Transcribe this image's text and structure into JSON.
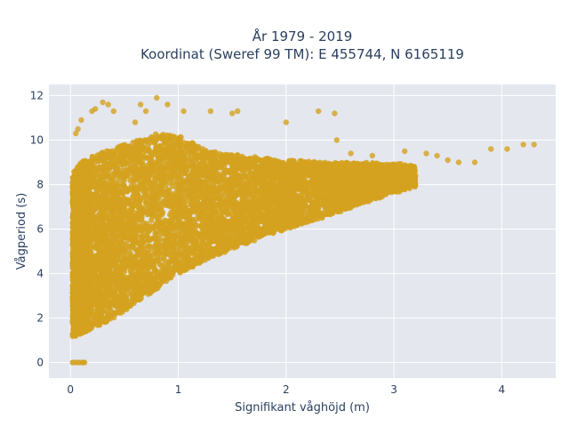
{
  "chart_data": {
    "type": "scatter",
    "title_line1": "År 1979 - 2019",
    "title_line2": "Koordinat (Sweref 99 TM): E 455744, N 6165119",
    "xlabel": "Signifikant våghöjd (m)",
    "ylabel": "Vågperiod (s)",
    "xlim": [
      -0.2,
      4.5
    ],
    "ylim": [
      -0.7,
      12.5
    ],
    "x_ticks": [
      0,
      1,
      2,
      3,
      4
    ],
    "y_ticks": [
      0,
      2,
      4,
      6,
      8,
      10,
      12
    ],
    "x_tick_labels": [
      "0",
      "1",
      "2",
      "3",
      "4"
    ],
    "y_tick_labels": [
      "0",
      "2",
      "4",
      "6",
      "8",
      "10",
      "12"
    ],
    "grid": true,
    "point_color": "#d4a21f",
    "plot_background": "#e5e7ef",
    "dense_region_envelope": {
      "x": [
        0.02,
        0.05,
        0.1,
        0.2,
        0.4,
        0.6,
        0.8,
        1.0,
        1.3,
        1.6,
        2.0,
        2.4,
        2.8,
        3.2
      ],
      "y_min": [
        1.1,
        1.2,
        1.3,
        1.5,
        2.0,
        2.6,
        3.3,
        4.0,
        4.7,
        5.3,
        6.0,
        6.6,
        7.3,
        7.9
      ],
      "y_max": [
        8.5,
        8.7,
        9.0,
        9.3,
        9.6,
        10.0,
        10.3,
        10.2,
        9.5,
        9.3,
        9.1,
        9.0,
        9.0,
        8.9
      ]
    },
    "zero_period_points": [
      [
        0.02,
        0.0
      ],
      [
        0.05,
        0.0
      ],
      [
        0.08,
        0.0
      ],
      [
        0.11,
        0.0
      ],
      [
        0.13,
        0.0
      ]
    ],
    "outlier_points": [
      [
        0.05,
        10.3
      ],
      [
        0.07,
        10.5
      ],
      [
        0.1,
        10.9
      ],
      [
        0.2,
        11.3
      ],
      [
        0.23,
        11.4
      ],
      [
        0.3,
        11.7
      ],
      [
        0.35,
        11.6
      ],
      [
        0.4,
        11.3
      ],
      [
        0.6,
        10.8
      ],
      [
        0.65,
        11.6
      ],
      [
        0.7,
        11.3
      ],
      [
        0.8,
        11.9
      ],
      [
        0.9,
        11.6
      ],
      [
        1.05,
        11.3
      ],
      [
        1.3,
        11.3
      ],
      [
        1.5,
        11.2
      ],
      [
        1.55,
        11.3
      ],
      [
        2.0,
        10.8
      ],
      [
        2.3,
        11.3
      ],
      [
        2.45,
        11.2
      ],
      [
        2.47,
        10.0
      ],
      [
        3.1,
        9.5
      ],
      [
        3.4,
        9.3
      ],
      [
        3.6,
        9.0
      ],
      [
        3.75,
        9.0
      ],
      [
        3.9,
        9.6
      ],
      [
        4.05,
        9.6
      ],
      [
        4.2,
        9.8
      ],
      [
        4.3,
        9.8
      ],
      [
        3.5,
        9.1
      ],
      [
        3.3,
        9.4
      ],
      [
        2.8,
        9.3
      ],
      [
        2.6,
        9.4
      ],
      [
        0.15,
        6.5
      ],
      [
        0.12,
        3.0
      ]
    ]
  }
}
